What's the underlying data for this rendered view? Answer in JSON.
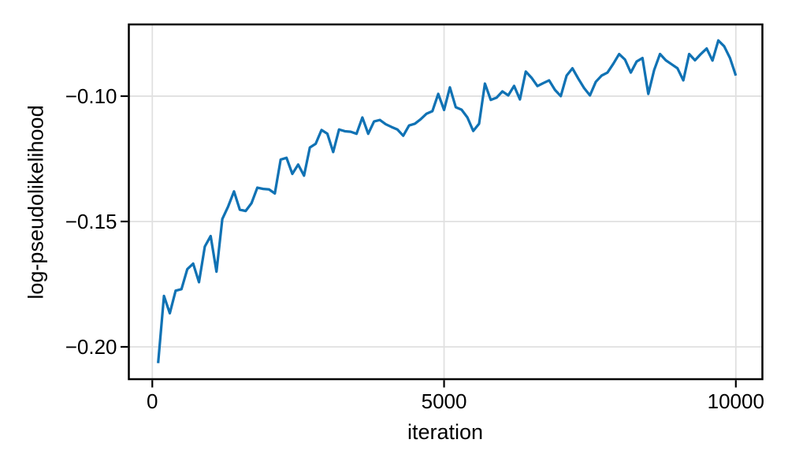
{
  "chart_data": {
    "type": "line",
    "title": "",
    "xlabel": "iteration",
    "ylabel": "log-pseudolikelihood",
    "grid": true,
    "legend_position": "none",
    "xlim": [
      -402,
      10455
    ],
    "ylim": [
      -0.2129,
      -0.0714
    ],
    "xticks": [
      0,
      5000,
      10000
    ],
    "xtick_labels": [
      "0",
      "5000",
      "10000"
    ],
    "yticks": [
      -0.1,
      -0.15,
      -0.2
    ],
    "ytick_labels": [
      "−0.10",
      "−0.15",
      "−0.20"
    ],
    "colors": {
      "line": "#1072b4",
      "grid": "#e0e0e0",
      "spine": "#000000",
      "text": "#000000",
      "background": "#ffffff"
    },
    "series": [
      {
        "name": "log-pseudolikelihood",
        "color": "#1072b4",
        "x": [
          100,
          200,
          300,
          400,
          500,
          600,
          700,
          800,
          900,
          1000,
          1100,
          1200,
          1300,
          1400,
          1500,
          1600,
          1700,
          1800,
          1900,
          2000,
          2100,
          2200,
          2300,
          2400,
          2500,
          2600,
          2700,
          2800,
          2900,
          3000,
          3100,
          3200,
          3300,
          3400,
          3500,
          3600,
          3700,
          3800,
          3900,
          4000,
          4100,
          4200,
          4300,
          4400,
          4500,
          4600,
          4700,
          4800,
          4900,
          5000,
          5100,
          5200,
          5300,
          5400,
          5500,
          5600,
          5700,
          5800,
          5900,
          6000,
          6100,
          6200,
          6300,
          6400,
          6500,
          6600,
          6700,
          6800,
          6900,
          7000,
          7100,
          7200,
          7300,
          7400,
          7500,
          7600,
          7700,
          7800,
          7900,
          8000,
          8100,
          8200,
          8300,
          8400,
          8500,
          8600,
          8700,
          8800,
          8900,
          9000,
          9100,
          9200,
          9300,
          9400,
          9500,
          9600,
          9700,
          9800,
          9900,
          10000
        ],
        "y": [
          -0.2065,
          -0.1797,
          -0.1866,
          -0.1776,
          -0.177,
          -0.169,
          -0.1668,
          -0.1742,
          -0.16,
          -0.1558,
          -0.17,
          -0.149,
          -0.144,
          -0.138,
          -0.1453,
          -0.1458,
          -0.1427,
          -0.1365,
          -0.137,
          -0.1372,
          -0.1388,
          -0.1253,
          -0.1246,
          -0.131,
          -0.1273,
          -0.1317,
          -0.1205,
          -0.119,
          -0.1135,
          -0.115,
          -0.1223,
          -0.1133,
          -0.114,
          -0.1142,
          -0.115,
          -0.1085,
          -0.115,
          -0.1101,
          -0.1095,
          -0.1112,
          -0.1123,
          -0.1133,
          -0.1158,
          -0.1117,
          -0.111,
          -0.1092,
          -0.107,
          -0.106,
          -0.0991,
          -0.1055,
          -0.0965,
          -0.1044,
          -0.1054,
          -0.1085,
          -0.1139,
          -0.111,
          -0.095,
          -0.1015,
          -0.1006,
          -0.0981,
          -0.0997,
          -0.0959,
          -0.1013,
          -0.0902,
          -0.0927,
          -0.096,
          -0.0948,
          -0.0937,
          -0.0975,
          -0.1,
          -0.0918,
          -0.0889,
          -0.093,
          -0.0968,
          -0.0997,
          -0.0943,
          -0.0918,
          -0.0906,
          -0.0871,
          -0.0832,
          -0.0854,
          -0.0906,
          -0.0862,
          -0.0848,
          -0.0991,
          -0.0896,
          -0.0832,
          -0.0857,
          -0.0873,
          -0.0889,
          -0.0937,
          -0.0832,
          -0.0857,
          -0.0832,
          -0.081,
          -0.0858,
          -0.0778,
          -0.0801,
          -0.0848,
          -0.0918
        ]
      }
    ]
  }
}
